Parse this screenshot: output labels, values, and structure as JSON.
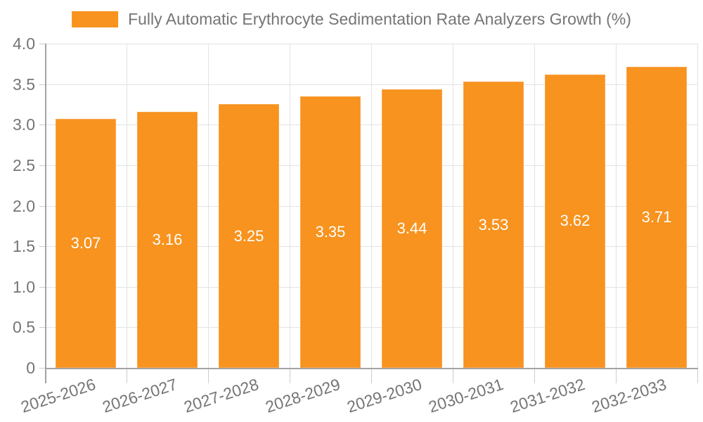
{
  "legend": {
    "label": "Fully Automatic Erythrocyte Sedimentation Rate Analyzers Growth (%)"
  },
  "chart_data": {
    "type": "bar",
    "title": "",
    "series_name": "Fully Automatic Erythrocyte Sedimentation Rate Analyzers Growth (%)",
    "categories": [
      "2025-2026",
      "2026-2027",
      "2027-2028",
      "2028-2029",
      "2029-2030",
      "2030-2031",
      "2031-2032",
      "2032-2033"
    ],
    "values": [
      3.07,
      3.16,
      3.25,
      3.35,
      3.44,
      3.53,
      3.62,
      3.71
    ],
    "bar_labels": [
      "3.07",
      "3.16",
      "3.25",
      "3.35",
      "3.44",
      "3.53",
      "3.62",
      "3.71"
    ],
    "xlabel": "",
    "ylabel": "",
    "ylim": [
      0,
      4
    ],
    "yticks": [
      {
        "value": 0,
        "label": "0"
      },
      {
        "value": 0.5,
        "label": "0.5"
      },
      {
        "value": 1,
        "label": "1.0"
      },
      {
        "value": 1.5,
        "label": "1.5"
      },
      {
        "value": 2,
        "label": "2.0"
      },
      {
        "value": 2.5,
        "label": "2.5"
      },
      {
        "value": 3,
        "label": "3.0"
      },
      {
        "value": 3.5,
        "label": "3.5"
      },
      {
        "value": 4,
        "label": "4.0"
      }
    ],
    "grid": true,
    "legend_position": "top",
    "x_label_rotation_deg": -18,
    "colors": {
      "bar": "#f7931e",
      "bar_border": "#f9a54d",
      "value_label": "#ffffff",
      "axis": "#a3a3a3",
      "gridline": "#e3e3e3",
      "tick": "#cccccc",
      "text": "#757575"
    }
  }
}
